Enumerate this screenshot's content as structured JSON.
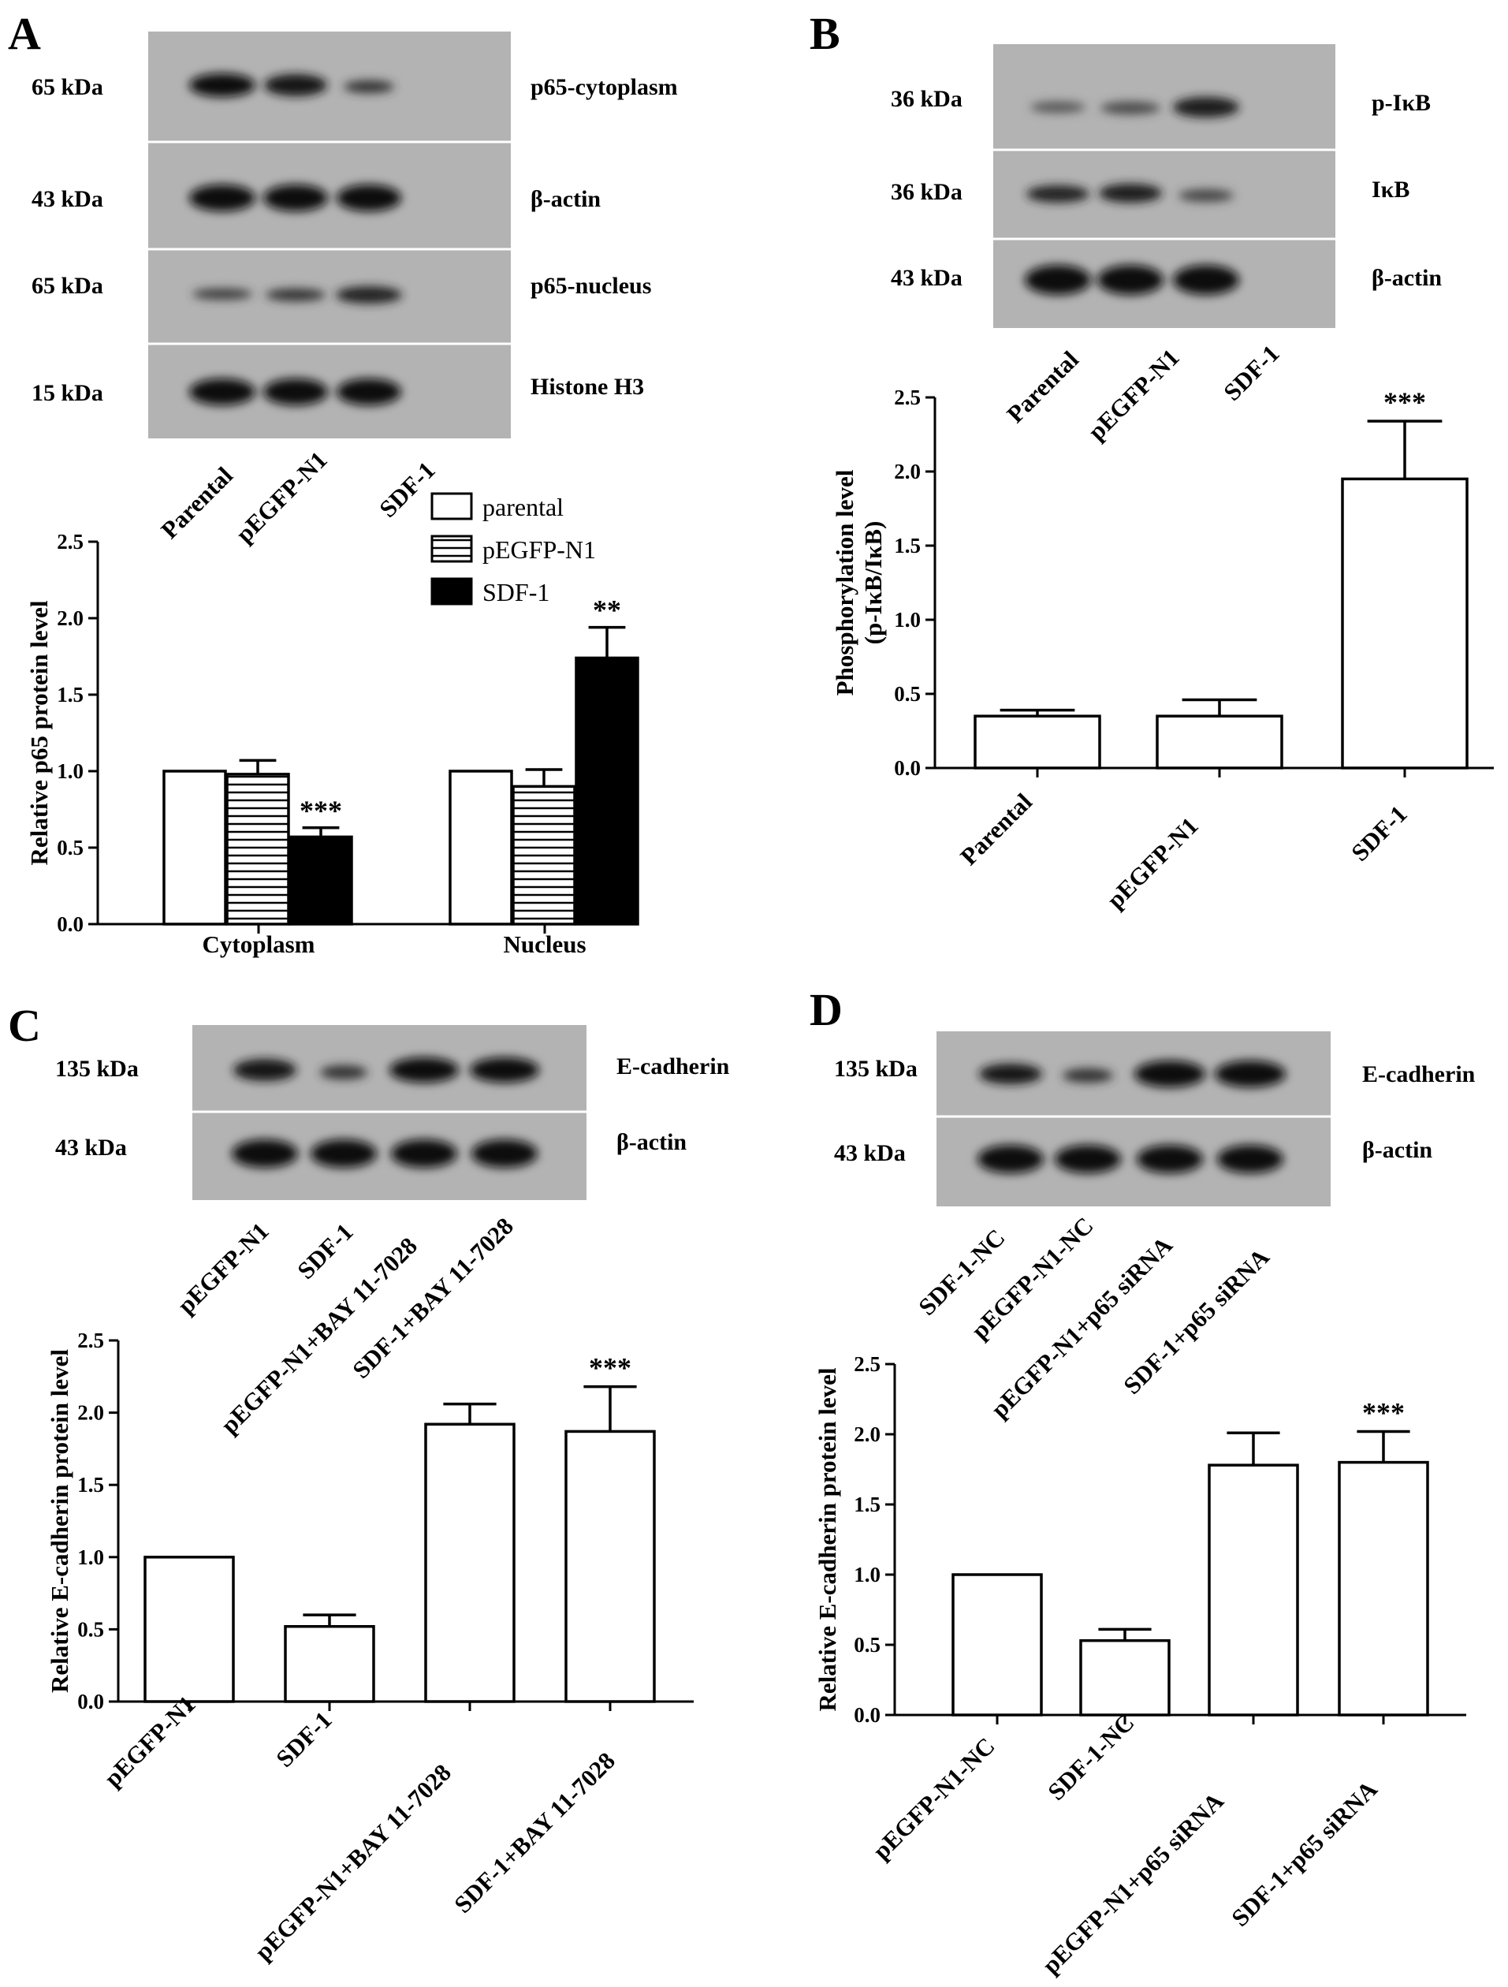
{
  "panels": {
    "A": {
      "letter": "A",
      "blot": {
        "kda": [
          "65 kDa",
          "43 kDa",
          "65 kDa",
          "15 kDa"
        ],
        "proteins": [
          "p65-cytoplasm",
          "β-actin",
          "p65-nucleus",
          "Histone H3"
        ],
        "lanes": [
          "Parental",
          "pEGFP-N1",
          "SDF-1"
        ]
      },
      "legend": [
        "parental",
        "pEGFP-N1",
        "SDF-1"
      ]
    },
    "B": {
      "letter": "B",
      "blot": {
        "kda": [
          "36 kDa",
          "36 kDa",
          "43 kDa"
        ],
        "proteins": [
          "p-IκB",
          "IκB",
          "β-actin"
        ],
        "lanes": [
          "Parental",
          "pEGFP-N1",
          "SDF-1"
        ]
      }
    },
    "C": {
      "letter": "C",
      "blot": {
        "kda": [
          "135 kDa",
          "43 kDa"
        ],
        "proteins": [
          "E-cadherin",
          "β-actin"
        ],
        "lanes": [
          "pEGFP-N1",
          "SDF-1",
          "pEGFP-N1+BAY 11-7028",
          "SDF-1+BAY 11-7028"
        ]
      }
    },
    "D": {
      "letter": "D",
      "blot": {
        "kda": [
          "135 kDa",
          "43 kDa"
        ],
        "proteins": [
          "E-cadherin",
          "β-actin"
        ],
        "lanes": [
          "SDF-1-NC",
          "pEGFP-N1-NC",
          "pEGFP-N1+p65 siRNA",
          "SDF-1+p65 siRNA"
        ]
      }
    }
  },
  "chart_data": [
    {
      "panel": "A",
      "type": "bar",
      "categories": [
        "Cytoplasm",
        "Nucleus"
      ],
      "series": [
        {
          "name": "parental",
          "values": [
            1.0,
            1.0
          ],
          "errors": [
            0,
            0
          ],
          "fill": "white"
        },
        {
          "name": "pEGFP-N1",
          "values": [
            0.98,
            0.9
          ],
          "errors": [
            0.09,
            0.11
          ],
          "fill": "hatch"
        },
        {
          "name": "SDF-1",
          "values": [
            0.57,
            1.74
          ],
          "errors": [
            0.06,
            0.2
          ],
          "fill": "black"
        }
      ],
      "annotations": [
        {
          "category": "Cytoplasm",
          "series": "SDF-1",
          "text": "***"
        },
        {
          "category": "Nucleus",
          "series": "SDF-1",
          "text": "**"
        }
      ],
      "ylabel": "Relative p65 protein level",
      "ylim": [
        0,
        2.5
      ],
      "yticks": [
        "0.0",
        "0.5",
        "1.0",
        "1.5",
        "2.0",
        "2.5"
      ],
      "grid": false,
      "legend": "top-center"
    },
    {
      "panel": "B",
      "type": "bar",
      "categories": [
        "Parental",
        "pEGFP-N1",
        "SDF-1"
      ],
      "values": [
        0.35,
        0.35,
        1.95
      ],
      "errors": [
        0.04,
        0.11,
        0.39
      ],
      "annotations": [
        {
          "category": "SDF-1",
          "text": "***"
        }
      ],
      "ylabel": "Phosphorylation level\n(p-IκB/IκB)",
      "ylim": [
        0,
        2.5
      ],
      "yticks": [
        "0.0",
        "0.5",
        "1.0",
        "1.5",
        "2.0",
        "2.5"
      ],
      "grid": false
    },
    {
      "panel": "C",
      "type": "bar",
      "categories": [
        "pEGFP-N1",
        "SDF-1",
        "pEGFP-N1+BAY 11-7028",
        "SDF-1+BAY 11-7028"
      ],
      "values": [
        1.0,
        0.52,
        1.92,
        1.87
      ],
      "errors": [
        0,
        0.08,
        0.14,
        0.31
      ],
      "annotations": [
        {
          "category": "SDF-1+BAY 11-7028",
          "text": "***"
        }
      ],
      "ylabel": "Relative E-cadherin protein level",
      "ylim": [
        0,
        2.5
      ],
      "yticks": [
        "0.0",
        "0.5",
        "1.0",
        "1.5",
        "2.0",
        "2.5"
      ],
      "grid": false
    },
    {
      "panel": "D",
      "type": "bar",
      "categories": [
        "pEGFP-N1-NC",
        "SDF-1-NC",
        "pEGFP-N1+p65 siRNA",
        "SDF-1+p65 siRNA"
      ],
      "values": [
        1.0,
        0.53,
        1.78,
        1.8
      ],
      "errors": [
        0,
        0.08,
        0.23,
        0.22
      ],
      "annotations": [
        {
          "category": "SDF-1+p65 siRNA",
          "text": "***"
        }
      ],
      "ylabel": "Relative E-cadherin protein level",
      "ylim": [
        0,
        2.5
      ],
      "yticks": [
        "0.0",
        "0.5",
        "1.0",
        "1.5",
        "2.0",
        "2.5"
      ],
      "grid": false
    }
  ]
}
